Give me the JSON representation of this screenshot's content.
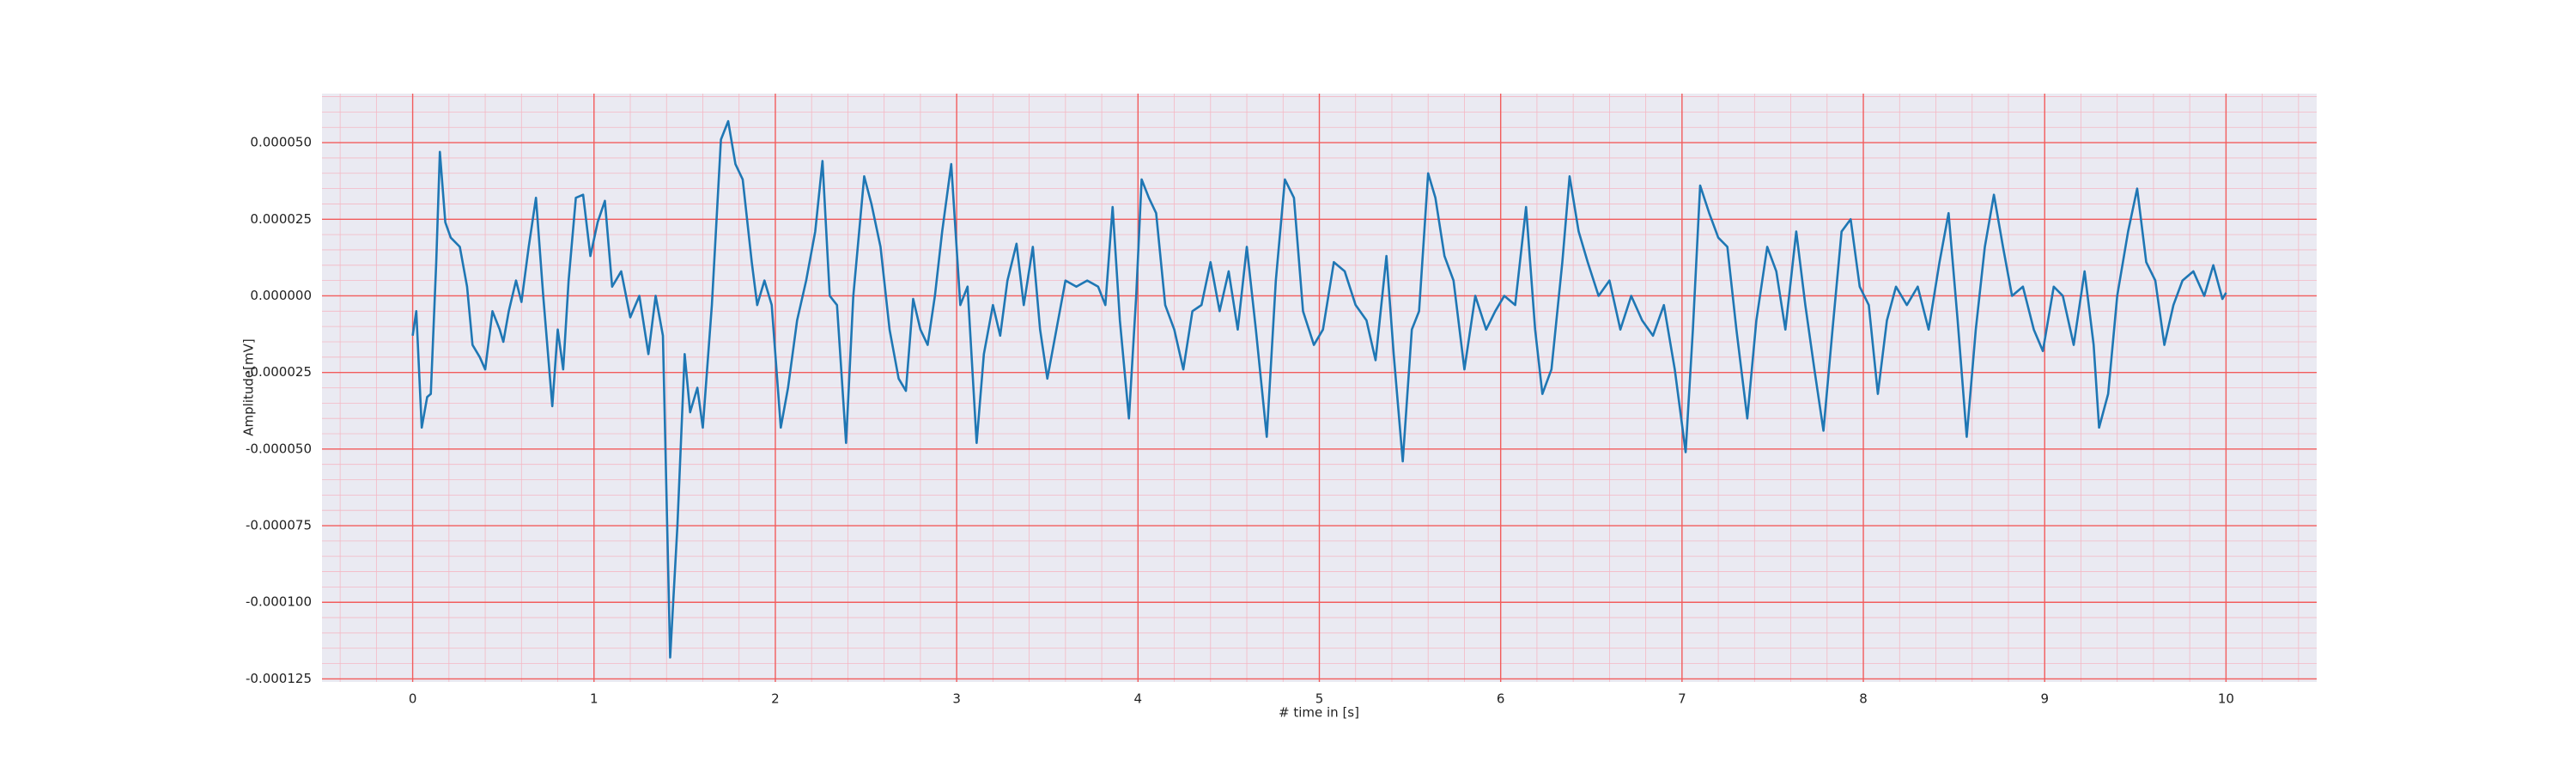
{
  "chart_data": {
    "type": "line",
    "xlabel": "# time in [s]",
    "ylabel": "Amplitude[mV]",
    "color": "#1f77b4",
    "x": [
      0,
      0.02,
      0.05,
      0.08,
      0.1,
      0.13,
      0.15,
      0.18,
      0.21,
      0.26,
      0.3,
      0.33,
      0.37,
      0.4,
      0.44,
      0.48,
      0.5,
      0.53,
      0.57,
      0.6,
      0.64,
      0.68,
      0.72,
      0.77,
      0.8,
      0.83,
      0.86,
      0.9,
      0.94,
      0.98,
      1.02,
      1.06,
      1.1,
      1.15,
      1.2,
      1.25,
      1.3,
      1.34,
      1.38,
      1.42,
      1.46,
      1.5,
      1.53,
      1.57,
      1.6,
      1.65,
      1.7,
      1.74,
      1.78,
      1.82,
      1.87,
      1.9,
      1.94,
      1.98,
      2.03,
      2.07,
      2.12,
      2.17,
      2.22,
      2.26,
      2.3,
      2.34,
      2.39,
      2.43,
      2.49,
      2.53,
      2.58,
      2.63,
      2.68,
      2.72,
      2.76,
      2.8,
      2.84,
      2.88,
      2.92,
      2.97,
      3.02,
      3.06,
      3.11,
      3.15,
      3.2,
      3.24,
      3.28,
      3.33,
      3.37,
      3.42,
      3.46,
      3.5,
      3.55,
      3.6,
      3.66,
      3.72,
      3.78,
      3.82,
      3.86,
      3.9,
      3.95,
      3.99,
      4.02,
      4.06,
      4.1,
      4.15,
      4.2,
      4.25,
      4.3,
      4.35,
      4.4,
      4.45,
      4.5,
      4.55,
      4.6,
      4.65,
      4.71,
      4.76,
      4.81,
      4.86,
      4.91,
      4.97,
      5.02,
      5.08,
      5.14,
      5.2,
      5.26,
      5.31,
      5.37,
      5.41,
      5.46,
      5.51,
      5.55,
      5.6,
      5.64,
      5.69,
      5.74,
      5.8,
      5.86,
      5.92,
      5.97,
      6.02,
      6.08,
      6.14,
      6.19,
      6.23,
      6.28,
      6.34,
      6.38,
      6.43,
      6.48,
      6.54,
      6.6,
      6.66,
      6.72,
      6.78,
      6.84,
      6.9,
      6.96,
      7.02,
      7.06,
      7.1,
      7.15,
      7.2,
      7.25,
      7.3,
      7.36,
      7.41,
      7.47,
      7.52,
      7.57,
      7.63,
      7.68,
      7.73,
      7.78,
      7.83,
      7.88,
      7.93,
      7.98,
      8.03,
      8.08,
      8.13,
      8.18,
      8.24,
      8.3,
      8.36,
      8.42,
      8.47,
      8.52,
      8.57,
      8.62,
      8.67,
      8.72,
      8.77,
      8.82,
      8.88,
      8.94,
      8.99,
      9.05,
      9.1,
      9.16,
      9.22,
      9.27,
      9.3,
      9.35,
      9.4,
      9.46,
      9.51,
      9.56,
      9.61,
      9.66,
      9.71,
      9.76,
      9.82,
      9.88,
      9.93,
      9.98,
      10
    ],
    "values": [
      -1.3e-05,
      -5e-06,
      -4.3e-05,
      -3.3e-05,
      -3.2e-05,
      1.1e-05,
      4.7e-05,
      2.4e-05,
      1.9e-05,
      1.6e-05,
      3e-06,
      -1.6e-05,
      -2e-05,
      -2.4e-05,
      -5e-06,
      -1.1e-05,
      -1.5e-05,
      -5e-06,
      5e-06,
      -2e-06,
      1.6e-05,
      3.2e-05,
      0,
      -3.6e-05,
      -1.1e-05,
      -2.4e-05,
      5e-06,
      3.2e-05,
      3.3e-05,
      1.3e-05,
      2.4e-05,
      3.1e-05,
      3e-06,
      8e-06,
      -7e-06,
      0,
      -1.9e-05,
      0,
      -1.3e-05,
      -0.000118,
      -7.5e-05,
      -1.9e-05,
      -3.8e-05,
      -3e-05,
      -4.3e-05,
      -3e-06,
      5.1e-05,
      5.7e-05,
      4.3e-05,
      3.8e-05,
      1.1e-05,
      -3e-06,
      5e-06,
      -3e-06,
      -4.3e-05,
      -3e-05,
      -8e-06,
      5e-06,
      2.1e-05,
      4.4e-05,
      0,
      -3e-06,
      -4.8e-05,
      0,
      3.9e-05,
      3e-05,
      1.6e-05,
      -1.1e-05,
      -2.7e-05,
      -3.1e-05,
      -1e-06,
      -1.1e-05,
      -1.6e-05,
      0,
      2.1e-05,
      4.3e-05,
      -3e-06,
      3e-06,
      -4.8e-05,
      -1.9e-05,
      -3e-06,
      -1.3e-05,
      5e-06,
      1.7e-05,
      -3e-06,
      1.6e-05,
      -1.1e-05,
      -2.7e-05,
      -1.1e-05,
      5e-06,
      3e-06,
      5e-06,
      3e-06,
      -3e-06,
      2.9e-05,
      -8e-06,
      -4e-05,
      0,
      3.8e-05,
      3.2e-05,
      2.7e-05,
      -3e-06,
      -1.1e-05,
      -2.4e-05,
      -5e-06,
      -3e-06,
      1.1e-05,
      -5e-06,
      8e-06,
      -1.1e-05,
      1.6e-05,
      -1.1e-05,
      -4.6e-05,
      5e-06,
      3.8e-05,
      3.2e-05,
      -5e-06,
      -1.6e-05,
      -1.1e-05,
      1.1e-05,
      8e-06,
      -3e-06,
      -8e-06,
      -2.1e-05,
      1.3e-05,
      -1.9e-05,
      -5.4e-05,
      -1.1e-05,
      -5e-06,
      4e-05,
      3.2e-05,
      1.3e-05,
      5e-06,
      -2.4e-05,
      0,
      -1.1e-05,
      -5e-06,
      0,
      -3e-06,
      2.9e-05,
      -1.1e-05,
      -3.2e-05,
      -2.4e-05,
      1.1e-05,
      3.9e-05,
      2.1e-05,
      1.1e-05,
      0,
      5e-06,
      -1.1e-05,
      0,
      -8e-06,
      -1.3e-05,
      -3e-06,
      -2.4e-05,
      -5.1e-05,
      -1.1e-05,
      3.6e-05,
      2.7e-05,
      1.9e-05,
      1.6e-05,
      -1.1e-05,
      -4e-05,
      -8e-06,
      1.6e-05,
      8e-06,
      -1.1e-05,
      2.1e-05,
      -3e-06,
      -2.4e-05,
      -4.4e-05,
      -1.1e-05,
      2.1e-05,
      2.5e-05,
      3e-06,
      -3e-06,
      -3.2e-05,
      -8e-06,
      3e-06,
      -3e-06,
      3e-06,
      -1.1e-05,
      1.1e-05,
      2.7e-05,
      -8e-06,
      -4.6e-05,
      -1.1e-05,
      1.6e-05,
      3.3e-05,
      1.6e-05,
      0,
      3e-06,
      -1.1e-05,
      -1.8e-05,
      3e-06,
      0,
      -1.6e-05,
      8e-06,
      -1.6e-05,
      -4.3e-05,
      -3.2e-05,
      0,
      2.1e-05,
      3.5e-05,
      1.1e-05,
      5e-06,
      -1.6e-05,
      -3e-06,
      5e-06,
      8e-06,
      0,
      1e-05,
      -1e-06,
      1e-06
    ],
    "xlim": [
      -0.5,
      10.5
    ],
    "xticks": [
      0,
      1,
      2,
      3,
      4,
      5,
      6,
      7,
      8,
      9,
      10
    ],
    "ylim": [
      -0.000126,
      6.6e-05
    ],
    "yticks": [
      {
        "value": -0.000125,
        "label": "-0.000125"
      },
      {
        "value": -0.0001,
        "label": "-0.000100"
      },
      {
        "value": -7.5e-05,
        "label": "-0.000075"
      },
      {
        "value": -5e-05,
        "label": "-0.000050"
      },
      {
        "value": -2.5e-05,
        "label": "-0.000025"
      },
      {
        "value": 0,
        "label": "0.000000"
      },
      {
        "value": 2.5e-05,
        "label": "0.000025"
      },
      {
        "value": 5e-05,
        "label": "0.000050"
      }
    ],
    "grid": true,
    "minor_grid": true
  }
}
